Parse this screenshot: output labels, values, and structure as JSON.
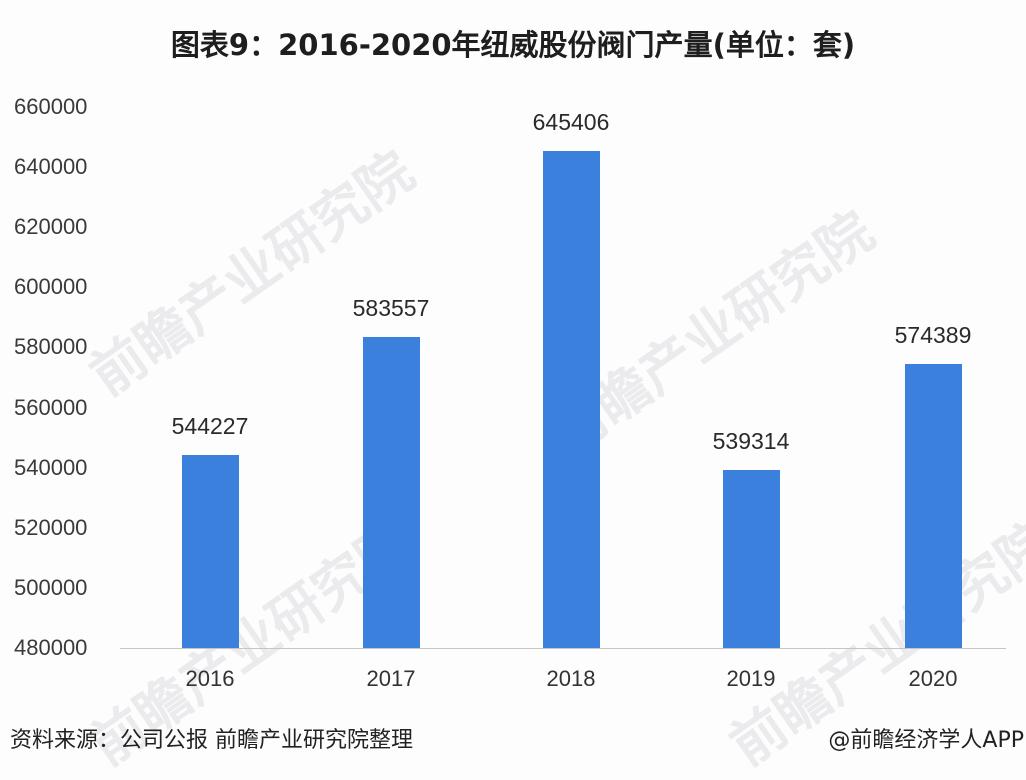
{
  "title": "图表9：2016-2020年纽威股份阀门产量(单位：套)",
  "footer": {
    "source": "资料来源：公司公报 前瞻产业研究院整理",
    "credit": "@前瞻经济学人APP"
  },
  "watermark": "前瞻产业研究院",
  "colors": {
    "bar": "#3b80dd",
    "axis": "#c9c4c0"
  },
  "chart_data": {
    "type": "bar",
    "title": "图表9：2016-2020年纽威股份阀门产量(单位：套)",
    "xlabel": "",
    "ylabel": "",
    "categories": [
      "2016",
      "2017",
      "2018",
      "2019",
      "2020"
    ],
    "values": [
      544227,
      583557,
      645406,
      539314,
      574389
    ],
    "value_labels": [
      "544227",
      "583557",
      "645406",
      "539314",
      "574389"
    ],
    "ylim": [
      480000,
      660000
    ],
    "yticks": [
      "660000",
      "640000",
      "620000",
      "600000",
      "580000",
      "560000",
      "540000",
      "520000",
      "500000",
      "480000"
    ],
    "grid": false,
    "legend": null
  }
}
